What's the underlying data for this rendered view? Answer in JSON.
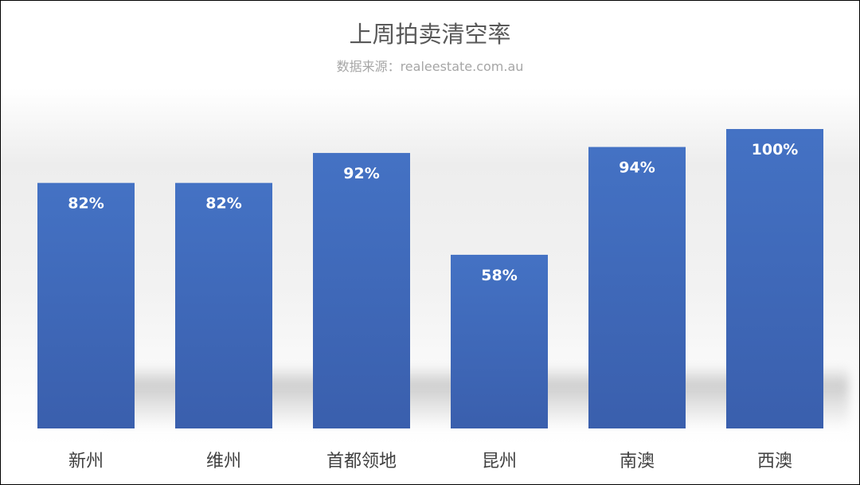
{
  "chart_data": {
    "type": "bar",
    "title": "上周拍卖清空率",
    "subtitle": "数据来源：realeestate.com.au",
    "categories": [
      "新州",
      "维州",
      "首都领地",
      "昆州",
      "南澳",
      "西澳"
    ],
    "values": [
      82,
      82,
      92,
      58,
      94,
      100
    ],
    "data_labels": [
      "82%",
      "82%",
      "92%",
      "58%",
      "94%",
      "100%"
    ],
    "xlabel": "",
    "ylabel": "",
    "ylim": [
      0,
      100
    ],
    "grid": false,
    "legend": "none",
    "colors": {
      "bar_top": "#4472c4",
      "bar_bottom": "#3a5fad",
      "label": "#ffffff",
      "category": "#404040"
    }
  }
}
